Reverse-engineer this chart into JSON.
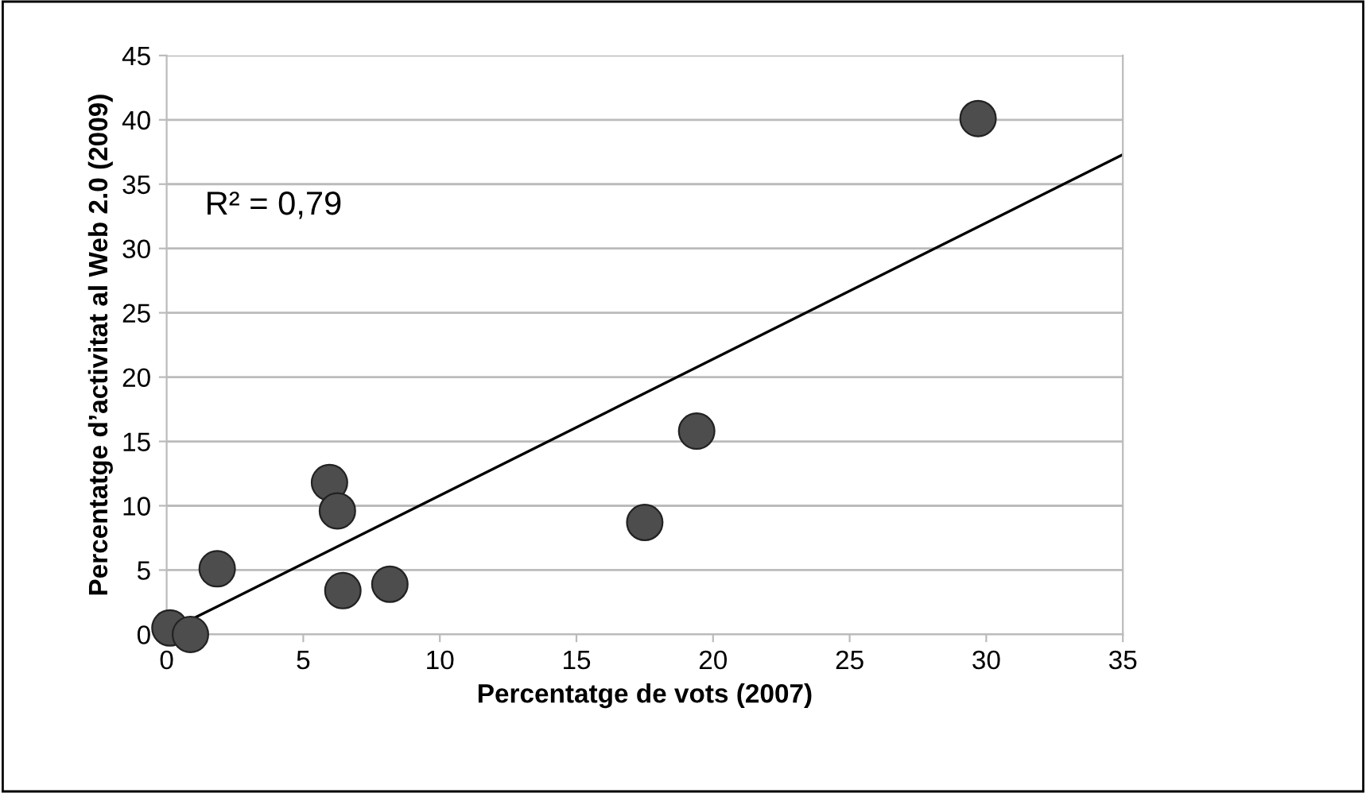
{
  "chart_data": {
    "type": "scatter",
    "xlabel": "Percentatge de vots (2007)",
    "ylabel": "Percentatge d’activitat al Web 2.0 (2009)",
    "annotations": [
      "R² = 0,79"
    ],
    "series": [
      {
        "color": "#4d4d4d",
        "marker": "circle",
        "x": [
          0.12,
          0.87,
          1.85,
          5.96,
          6.25,
          6.45,
          8.17,
          17.5,
          19.4,
          29.7
        ],
        "values": [
          0.5,
          0.0,
          5.1,
          11.8,
          9.6,
          3.4,
          3.9,
          8.7,
          15.8,
          40.1
        ]
      },
      {
        "type": "line",
        "color": "#000000",
        "marker": "none",
        "line_style": "solid",
        "x": [
          0,
          35
        ],
        "values": [
          0.2,
          37.3
        ]
      }
    ],
    "xlim": [
      0,
      35
    ],
    "xticks": [
      0,
      5,
      10,
      15,
      20,
      25,
      30,
      35
    ],
    "ylim": [
      0,
      45
    ],
    "yticks": [
      0,
      5,
      10,
      15,
      20,
      25,
      30,
      35,
      40,
      45
    ],
    "grid": "y",
    "legend": false
  }
}
